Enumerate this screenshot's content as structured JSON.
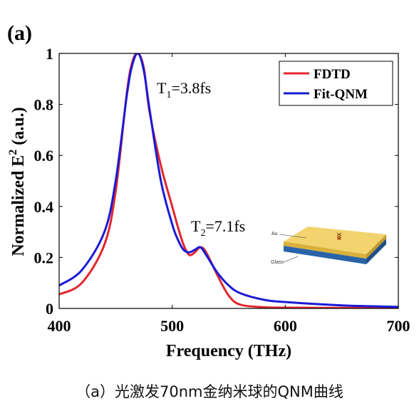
{
  "panel_label": "(a)",
  "caption": "（a）光激发70nm金纳米球的QNM曲线",
  "chart_data": {
    "type": "line",
    "xlabel": "Frequency (THz)",
    "ylabel_main": "Normalized E",
    "ylabel_sup": "2",
    "ylabel_tail": " (a.u.)",
    "xlim": [
      400,
      700
    ],
    "ylim": [
      0,
      1
    ],
    "xticks": [
      400,
      500,
      600,
      700
    ],
    "yticks": [
      0,
      0.2,
      0.4,
      0.6,
      0.8,
      1
    ],
    "ytick_labels": [
      "0",
      "0.2",
      "0.4",
      "0.6",
      "0.8",
      "1"
    ],
    "grid": false,
    "legend_position": "top-right",
    "series": [
      {
        "name": "FDTD",
        "color": "#e3262c",
        "x": [
          400,
          420,
          440,
          450,
          460,
          465,
          470,
          475,
          480,
          490,
          500,
          505,
          510,
          515,
          520,
          525,
          530,
          540,
          550,
          560,
          580,
          600,
          650,
          700
        ],
        "y": [
          0.055,
          0.1,
          0.25,
          0.46,
          0.85,
          0.97,
          1.0,
          0.94,
          0.77,
          0.56,
          0.4,
          0.32,
          0.25,
          0.21,
          0.22,
          0.24,
          0.22,
          0.13,
          0.05,
          0.015,
          0.005,
          0.003,
          0.002,
          0.002
        ]
      },
      {
        "name": "Fit-QNM",
        "color": "#1a1ad6",
        "x": [
          400,
          420,
          440,
          450,
          460,
          465,
          470,
          475,
          480,
          490,
          500,
          505,
          510,
          515,
          520,
          525,
          530,
          540,
          550,
          560,
          580,
          600,
          650,
          700
        ],
        "y": [
          0.09,
          0.15,
          0.3,
          0.5,
          0.84,
          0.96,
          1.0,
          0.93,
          0.78,
          0.5,
          0.33,
          0.27,
          0.23,
          0.22,
          0.23,
          0.24,
          0.21,
          0.14,
          0.09,
          0.06,
          0.035,
          0.025,
          0.012,
          0.006
        ]
      }
    ],
    "annotations": [
      {
        "base": "T",
        "sub": "1",
        "rest": "=3.8fs",
        "x": 485,
        "y": 0.85
      },
      {
        "base": "T",
        "sub": "2",
        "rest": "=7.1fs",
        "x": 517,
        "y": 0.3
      }
    ],
    "inset": {
      "labels": [
        "Au",
        "Glass"
      ]
    }
  }
}
